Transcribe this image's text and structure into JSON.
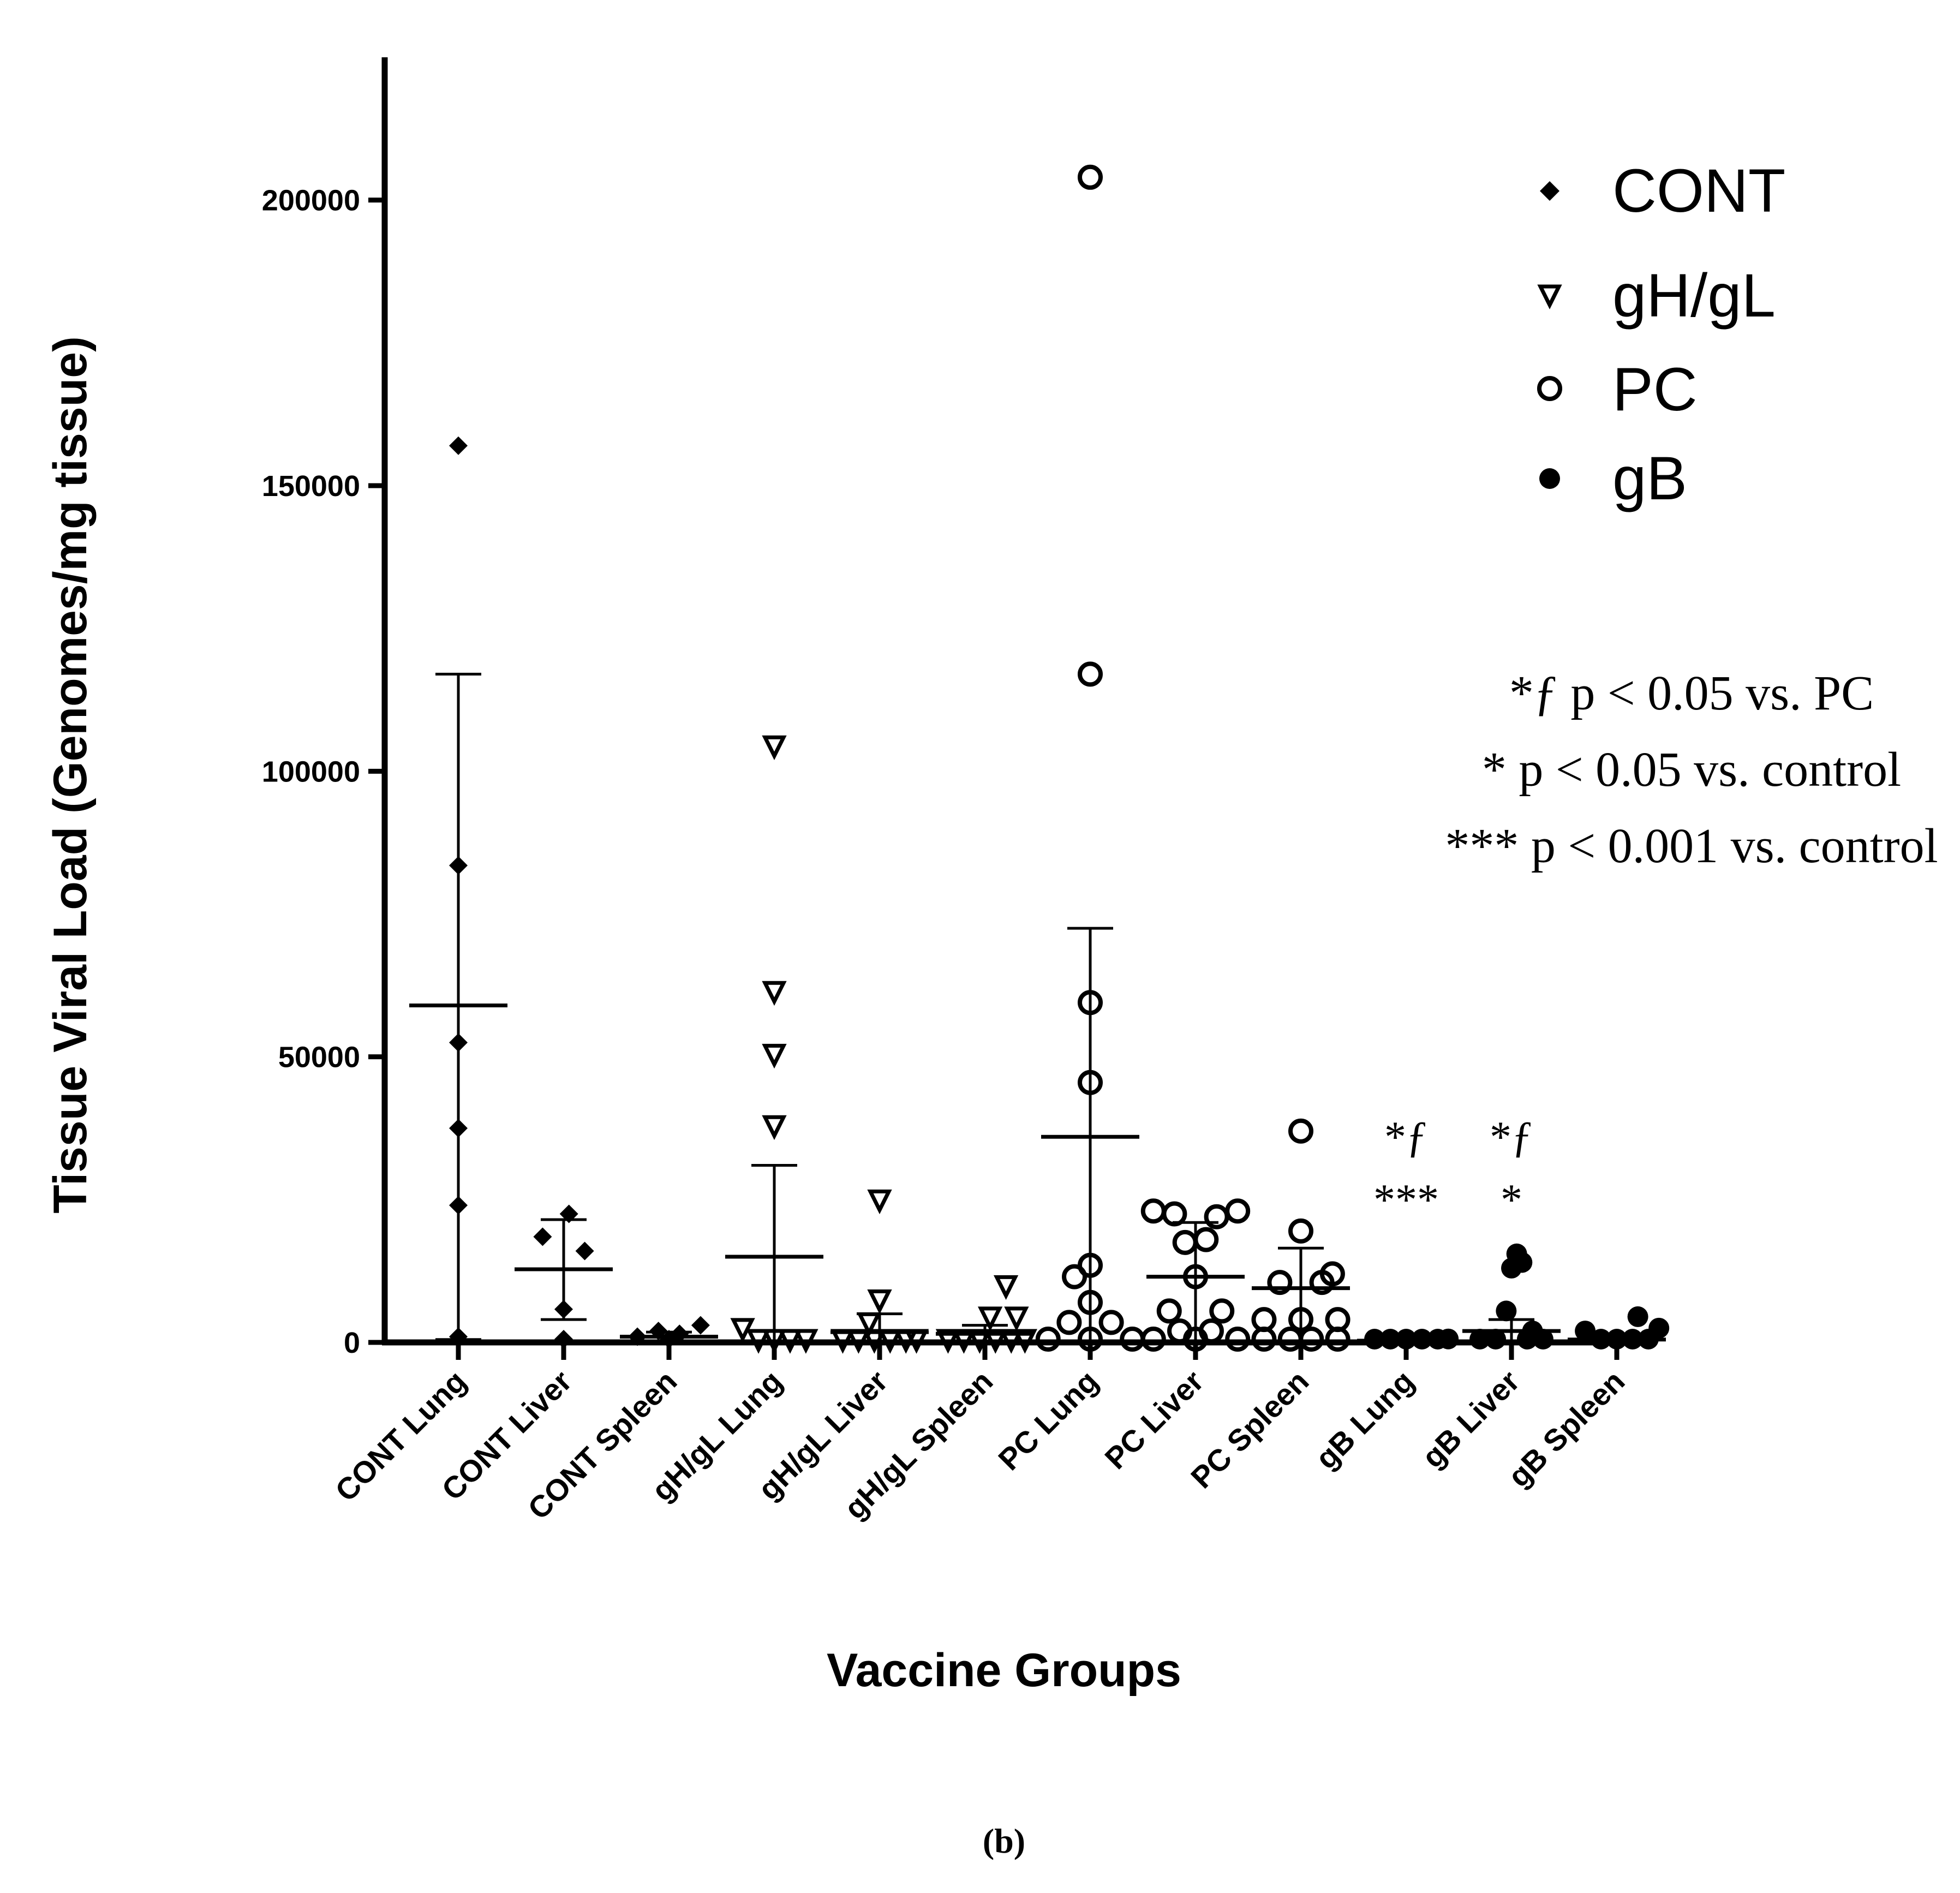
{
  "chart_data": {
    "type": "scatter",
    "title": "",
    "xlabel": "Vaccine Groups",
    "ylabel": "Tissue Viral Load (Genomes/mg tissue)",
    "ylim": [
      0,
      225000
    ],
    "yticks": [
      0,
      50000,
      100000,
      150000,
      200000
    ],
    "ytick_labels": [
      "0",
      "50000",
      "100000",
      "150000",
      "200000"
    ],
    "categories": [
      "CONT Lung",
      "CONT Liver",
      "CONT Spleen",
      "gH/gL Lung",
      "gH/gL Liver",
      "gH/gL Spleen",
      "PC Lung",
      "PC Liver",
      "PC Spleen",
      "gB Lung",
      "gB Liver",
      "gB Spleen"
    ],
    "legend": {
      "position": "top-right",
      "entries": [
        {
          "label": "CONT",
          "marker": "diamond-filled"
        },
        {
          "label": "gH/gL",
          "marker": "triangle-down-open"
        },
        {
          "label": "PC",
          "marker": "circle-open"
        },
        {
          "label": "gB",
          "marker": "circle-filled"
        }
      ]
    },
    "groups": [
      {
        "category": "CONT Lung",
        "vaccine": "CONT",
        "mean": 59000,
        "error": [
          500,
          117000
        ],
        "points": [
          [
            0,
            157000
          ],
          [
            0,
            83500
          ],
          [
            0,
            52500
          ],
          [
            0,
            37500
          ],
          [
            0,
            24000
          ],
          [
            0,
            1000
          ]
        ]
      },
      {
        "category": "CONT Liver",
        "vaccine": "CONT",
        "mean": 12800,
        "error": [
          4000,
          21500
        ],
        "points": [
          [
            -0.2,
            18500
          ],
          [
            0.2,
            16000
          ],
          [
            0.05,
            22500
          ],
          [
            0.0,
            5800
          ],
          [
            0.0,
            500
          ]
        ]
      },
      {
        "category": "CONT Spleen",
        "vaccine": "CONT",
        "mean": 1000,
        "error": [
          200,
          1800
        ],
        "points": [
          [
            -0.3,
            1000
          ],
          [
            -0.1,
            2000
          ],
          [
            0.1,
            1500
          ],
          [
            0.3,
            3000
          ],
          [
            0.0,
            500
          ]
        ]
      },
      {
        "category": "gH/gL Lung",
        "vaccine": "gH/gL",
        "mean": 15000,
        "error": [
          0,
          31000
        ],
        "points": [
          [
            0,
            104500
          ],
          [
            0,
            61500
          ],
          [
            0,
            50500
          ],
          [
            0,
            38000
          ],
          [
            -0.3,
            2500
          ],
          [
            -0.15,
            500
          ],
          [
            0.0,
            300
          ],
          [
            0.15,
            300
          ],
          [
            0.3,
            300
          ]
        ]
      },
      {
        "category": "gH/gL Liver",
        "vaccine": "gH/gL",
        "mean": 1800,
        "error": [
          0,
          5000
        ],
        "points": [
          [
            0,
            25000
          ],
          [
            0,
            7500
          ],
          [
            -0.1,
            3500
          ],
          [
            -0.35,
            400
          ],
          [
            -0.2,
            400
          ],
          [
            -0.05,
            400
          ],
          [
            0.1,
            400
          ],
          [
            0.25,
            400
          ],
          [
            0.35,
            400
          ]
        ]
      },
      {
        "category": "gH/gL Spleen",
        "vaccine": "gH/gL",
        "mean": 1500,
        "error": [
          0,
          3000
        ],
        "points": [
          [
            0.2,
            10000
          ],
          [
            0.05,
            4500
          ],
          [
            0.3,
            4500
          ],
          [
            -0.35,
            400
          ],
          [
            -0.2,
            400
          ],
          [
            -0.05,
            400
          ],
          [
            0.1,
            400
          ],
          [
            0.25,
            400
          ],
          [
            0.38,
            400
          ]
        ]
      },
      {
        "category": "PC Lung",
        "vaccine": "PC",
        "mean": 36000,
        "error": [
          0,
          72500
        ],
        "points": [
          [
            0,
            204000
          ],
          [
            0,
            117000
          ],
          [
            0,
            59500
          ],
          [
            0,
            45500
          ],
          [
            0,
            13500
          ],
          [
            -0.15,
            11500
          ],
          [
            0.0,
            7000
          ],
          [
            -0.2,
            3500
          ],
          [
            0.2,
            3500
          ],
          [
            -0.4,
            500
          ],
          [
            0.4,
            500
          ],
          [
            0.0,
            500
          ]
        ]
      },
      {
        "category": "PC Liver",
        "vaccine": "PC",
        "mean": 11500,
        "error": [
          0,
          21000
        ],
        "points": [
          [
            -0.4,
            23000
          ],
          [
            -0.2,
            22500
          ],
          [
            0.2,
            22000
          ],
          [
            0.4,
            23000
          ],
          [
            -0.1,
            17500
          ],
          [
            0.1,
            18000
          ],
          [
            0.0,
            11500
          ],
          [
            -0.25,
            5500
          ],
          [
            0.25,
            5500
          ],
          [
            -0.15,
            2000
          ],
          [
            0.15,
            2000
          ],
          [
            -0.4,
            500
          ],
          [
            0.0,
            500
          ],
          [
            0.4,
            500
          ]
        ]
      },
      {
        "category": "PC Spleen",
        "vaccine": "PC",
        "mean": 9500,
        "error": [
          0,
          16500
        ],
        "points": [
          [
            0,
            37000
          ],
          [
            0,
            19500
          ],
          [
            0.3,
            12000
          ],
          [
            -0.2,
            10500
          ],
          [
            0.2,
            10500
          ],
          [
            -0.35,
            4000
          ],
          [
            0.0,
            4000
          ],
          [
            0.35,
            4000
          ],
          [
            -0.35,
            500
          ],
          [
            -0.1,
            500
          ],
          [
            0.1,
            500
          ],
          [
            0.35,
            500
          ]
        ]
      },
      {
        "category": "gB Lung",
        "vaccine": "gB",
        "mean": 300,
        "error": [
          0,
          500
        ],
        "points": [
          [
            -0.3,
            400
          ],
          [
            -0.15,
            200
          ],
          [
            0.0,
            200
          ],
          [
            0.15,
            200
          ],
          [
            0.3,
            200
          ],
          [
            0.4,
            600
          ]
        ]
      },
      {
        "category": "gB Liver",
        "vaccine": "gB",
        "mean": 2000,
        "error": [
          0,
          4000
        ],
        "points": [
          [
            0.05,
            15500
          ],
          [
            0.1,
            14000
          ],
          [
            0.0,
            13000
          ],
          [
            -0.05,
            5500
          ],
          [
            0.2,
            2000
          ],
          [
            -0.3,
            400
          ],
          [
            -0.15,
            400
          ],
          [
            0.15,
            400
          ],
          [
            0.3,
            400
          ]
        ]
      },
      {
        "category": "gB Spleen",
        "vaccine": "gB",
        "mean": 500,
        "error": [
          0,
          1500
        ],
        "points": [
          [
            0.2,
            4500
          ],
          [
            -0.3,
            2000
          ],
          [
            0.4,
            2500
          ],
          [
            -0.15,
            500
          ],
          [
            0.0,
            500
          ],
          [
            0.15,
            500
          ],
          [
            0.3,
            500
          ]
        ]
      }
    ],
    "annotations": [
      {
        "category": "gB Lung",
        "lines": [
          "*ƒ",
          "***"
        ]
      },
      {
        "category": "gB Liver",
        "lines": [
          "*ƒ",
          "*"
        ]
      }
    ]
  },
  "notes": [
    "*ƒ p < 0.05 vs. PC",
    "* p < 0.05 vs. control",
    "*** p < 0.001 vs. control"
  ],
  "caption": "(b)"
}
